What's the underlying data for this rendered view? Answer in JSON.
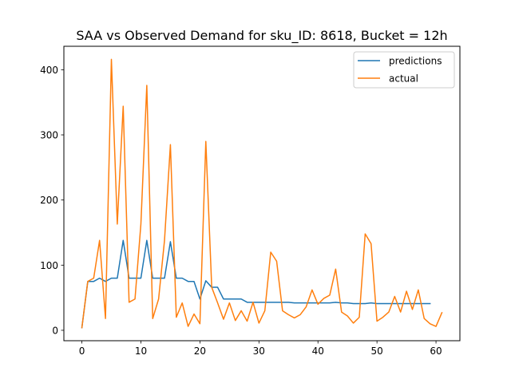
{
  "chart_data": {
    "type": "line",
    "title": "SAA vs Observed Demand for sku_ID: 8618, Bucket = 12h",
    "xlabel": "",
    "ylabel": "",
    "xlim": [
      -3.05,
      64.05
    ],
    "ylim": [
      -16,
      436
    ],
    "xticks": [
      0,
      10,
      20,
      30,
      40,
      50,
      60
    ],
    "yticks": [
      0,
      100,
      200,
      300,
      400
    ],
    "grid": false,
    "legend_position": "top-right",
    "series": [
      {
        "name": "predictions",
        "color": "#1f77b4",
        "x": [
          0,
          1,
          2,
          3,
          4,
          5,
          6,
          7,
          8,
          9,
          10,
          11,
          12,
          13,
          14,
          15,
          16,
          17,
          18,
          19,
          20,
          21,
          22,
          23,
          24,
          25,
          26,
          27,
          28,
          29,
          30,
          31,
          32,
          33,
          34,
          35,
          36,
          37,
          38,
          39,
          40,
          41,
          42,
          43,
          44,
          45,
          46,
          47,
          48,
          49,
          50,
          51,
          52,
          53,
          54,
          55,
          56,
          57,
          58,
          59
        ],
        "values": [
          4,
          75,
          75,
          80,
          75,
          80,
          80,
          138,
          80,
          80,
          80,
          138,
          80,
          80,
          80,
          136,
          80,
          80,
          75,
          75,
          48,
          76,
          66,
          66,
          48,
          48,
          48,
          48,
          43,
          43,
          43,
          43,
          43,
          43,
          43,
          43,
          42,
          42,
          42,
          42,
          42,
          42,
          42,
          43,
          42,
          42,
          41,
          41,
          41,
          42,
          41,
          41,
          41,
          41,
          41,
          41,
          41,
          41,
          41,
          41
        ]
      },
      {
        "name": "actual",
        "color": "#ff7f0e",
        "x": [
          0,
          1,
          2,
          3,
          4,
          5,
          6,
          7,
          8,
          9,
          10,
          11,
          12,
          13,
          14,
          15,
          16,
          17,
          18,
          19,
          20,
          21,
          22,
          23,
          24,
          25,
          26,
          27,
          28,
          29,
          30,
          31,
          32,
          33,
          34,
          35,
          36,
          37,
          38,
          39,
          40,
          41,
          42,
          43,
          44,
          45,
          46,
          47,
          48,
          49,
          50,
          51,
          52,
          53,
          54,
          55,
          56,
          57,
          58,
          59,
          60,
          61
        ],
        "values": [
          4,
          75,
          80,
          138,
          18,
          416,
          163,
          344,
          43,
          48,
          163,
          376,
          18,
          48,
          138,
          285,
          20,
          42,
          6,
          25,
          10,
          290,
          66,
          42,
          17,
          42,
          15,
          30,
          14,
          43,
          11,
          30,
          120,
          106,
          30,
          24,
          19,
          24,
          36,
          62,
          40,
          49,
          54,
          94,
          28,
          22,
          11,
          20,
          148,
          133,
          14,
          20,
          28,
          52,
          28,
          60,
          32,
          62,
          18,
          10,
          6,
          27
        ]
      }
    ]
  }
}
